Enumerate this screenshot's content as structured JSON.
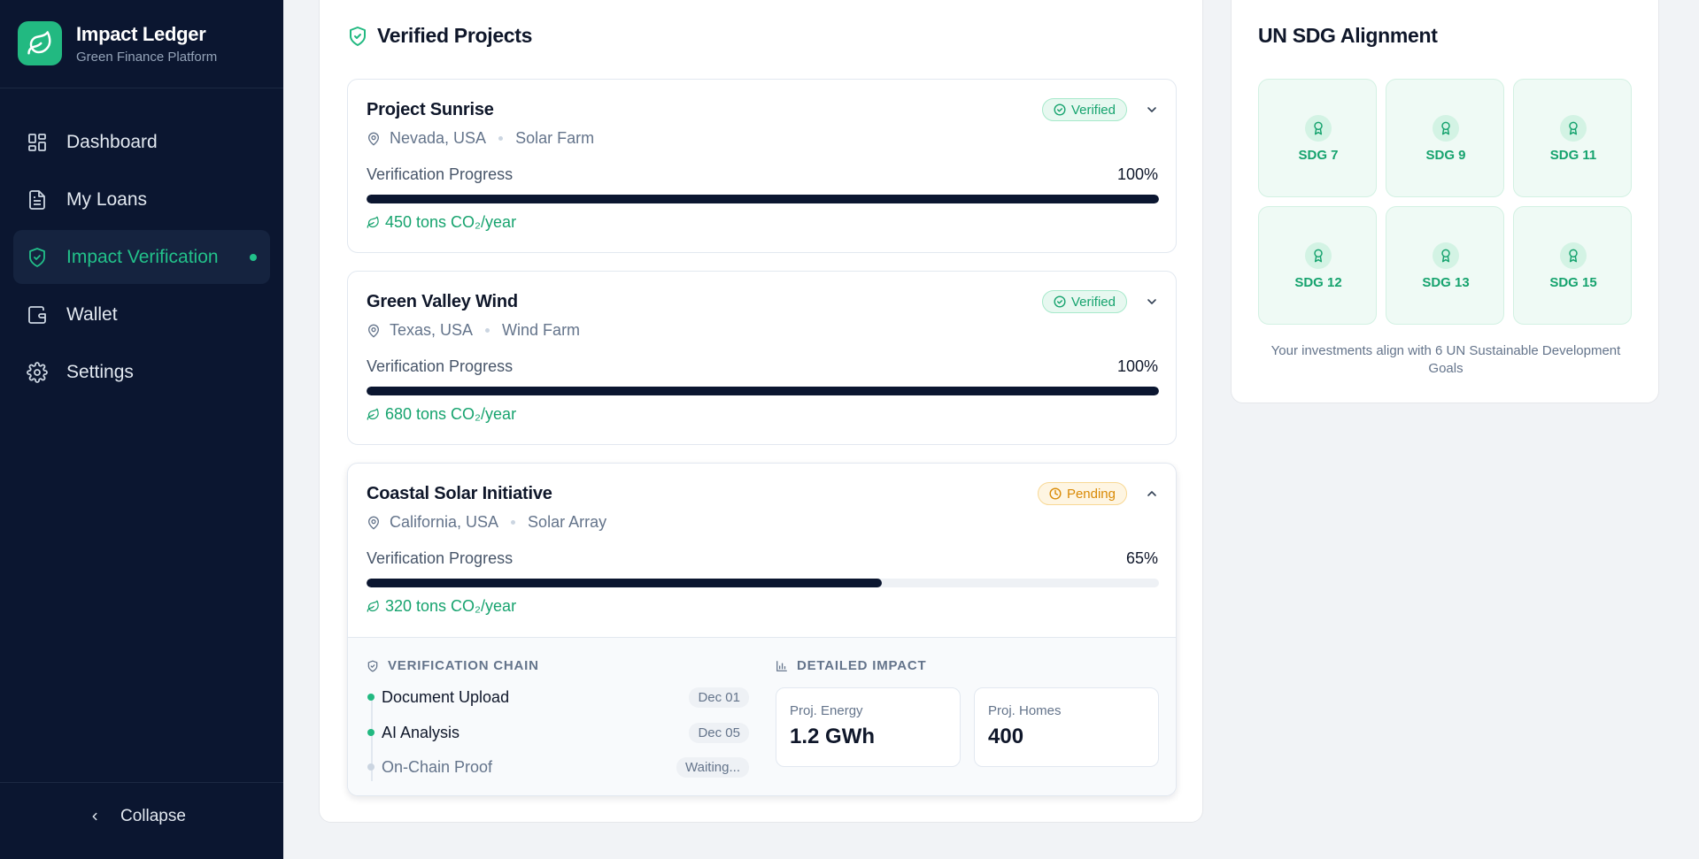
{
  "brand": {
    "title": "Impact Ledger",
    "subtitle": "Green Finance Platform"
  },
  "nav": [
    {
      "label": "Dashboard",
      "icon": "dashboard-icon",
      "active": false
    },
    {
      "label": "My Loans",
      "icon": "document-icon",
      "active": false
    },
    {
      "label": "Impact Verification",
      "icon": "shield-check-icon",
      "active": true
    },
    {
      "label": "Wallet",
      "icon": "wallet-icon",
      "active": false
    },
    {
      "label": "Settings",
      "icon": "gear-icon",
      "active": false
    }
  ],
  "collapse_label": "Collapse",
  "verified_projects": {
    "title": "Verified Projects",
    "projects": [
      {
        "name": "Project Sunrise",
        "location": "Nevada, USA",
        "type": "Solar Farm",
        "status": "Verified",
        "progress_label": "Verification Progress",
        "progress_text": "100%",
        "progress": 100,
        "impact": "450 tons CO₂/year",
        "expanded": false
      },
      {
        "name": "Green Valley Wind",
        "location": "Texas, USA",
        "type": "Wind Farm",
        "status": "Verified",
        "progress_label": "Verification Progress",
        "progress_text": "100%",
        "progress": 100,
        "impact": "680 tons CO₂/year",
        "expanded": false
      },
      {
        "name": "Coastal Solar Initiative",
        "location": "California, USA",
        "type": "Solar Array",
        "status": "Pending",
        "progress_label": "Verification Progress",
        "progress_text": "65%",
        "progress": 65,
        "impact": "320 tons CO₂/year",
        "expanded": true
      }
    ],
    "details": {
      "chain_title": "VERIFICATION CHAIN",
      "chain": [
        {
          "label": "Document Upload",
          "date": "Dec 01",
          "done": true
        },
        {
          "label": "AI Analysis",
          "date": "Dec 05",
          "done": true
        },
        {
          "label": "On-Chain Proof",
          "date": "Waiting...",
          "done": false
        }
      ],
      "impact_title": "DETAILED IMPACT",
      "stats": [
        {
          "label": "Proj. Energy",
          "value": "1.2 GWh"
        },
        {
          "label": "Proj. Homes",
          "value": "400"
        }
      ]
    }
  },
  "sdg": {
    "title": "UN SDG Alignment",
    "goals": [
      "SDG 7",
      "SDG 9",
      "SDG 11",
      "SDG 12",
      "SDG 13",
      "SDG 15"
    ],
    "note": "Your investments align with 6 UN Sustainable Development Goals"
  },
  "colors": {
    "sidebar_bg": "#0b1630",
    "accent_green": "#22b981",
    "verified_green": "#16a36e",
    "pending_amber": "#d98a06",
    "progress_fill": "#0b1630"
  }
}
